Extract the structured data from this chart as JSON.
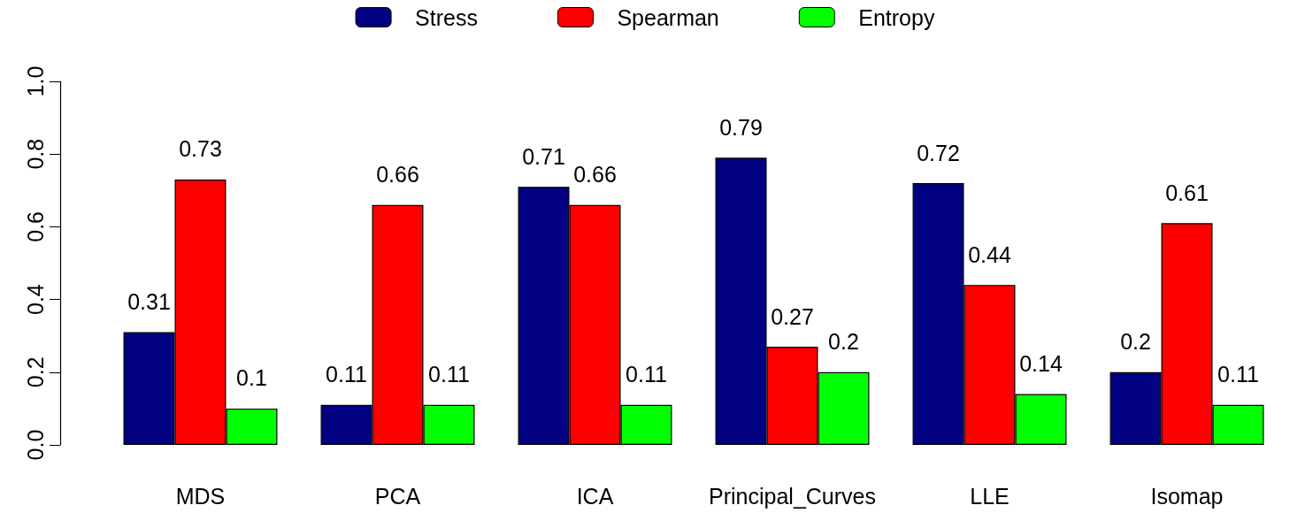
{
  "chart_data": {
    "type": "bar",
    "categories": [
      "MDS",
      "PCA",
      "ICA",
      "Principal_Curves",
      "LLE",
      "Isomap"
    ],
    "series": [
      {
        "name": "Stress",
        "color": "#000080",
        "values": [
          0.31,
          0.11,
          0.71,
          0.79,
          0.72,
          0.2
        ]
      },
      {
        "name": "Spearman",
        "color": "#ff0000",
        "values": [
          0.73,
          0.66,
          0.66,
          0.27,
          0.44,
          0.61
        ]
      },
      {
        "name": "Entropy",
        "color": "#00ff00",
        "values": [
          0.1,
          0.11,
          0.11,
          0.2,
          0.14,
          0.11
        ]
      }
    ],
    "ylim": [
      0,
      1
    ],
    "yticks": [
      {
        "value": 0,
        "label": "0.0"
      },
      0.2,
      0.4,
      0.6,
      0.8,
      {
        "value": 1,
        "label": "1.0"
      }
    ],
    "data_labels": true,
    "grid": false,
    "legend": "top"
  }
}
